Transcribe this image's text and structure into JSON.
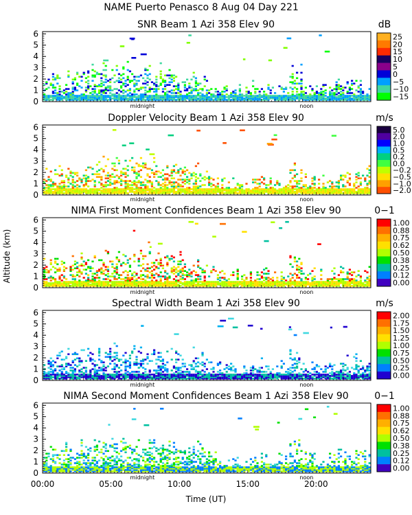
{
  "header": {
    "title": "NAME Puerto Penasco    8 Aug 04 Day 221"
  },
  "figure": {
    "ylabel": "Altitude (km)",
    "xlabel": "Time (UT)",
    "x_ticks": [
      "00:00",
      "05:00",
      "10:00",
      "15:00",
      "20:00"
    ],
    "y_ticks": [
      "0",
      "1",
      "2",
      "3",
      "4",
      "5",
      "6"
    ],
    "marker_midnight": "midnight",
    "marker_noon": "noon"
  },
  "chart_data": [
    {
      "type": "heatmap",
      "title": "SNR Beam 1 Azi 358 Elev 90",
      "unit": "dB",
      "xlim": [
        0,
        24
      ],
      "ylim": [
        0,
        6.2
      ],
      "colorbar": {
        "labels": [
          "25",
          "20",
          "15",
          "10",
          "5",
          "0",
          "−5",
          "−10",
          "−15"
        ],
        "colors": [
          "#ffb020",
          "#ff7a00",
          "#ff2a00",
          "#1a0060",
          "#8a008a",
          "#0000d8",
          "#00a0ff",
          "#40d8a0",
          "#00ff00"
        ]
      },
      "palette": [
        "#80ff00",
        "#00ff00",
        "#40d8a0",
        "#00a0ff",
        "#0000d8"
      ]
    },
    {
      "type": "heatmap",
      "title": "Doppler Velocity Beam 1 Azi 358 Elev 90",
      "unit": "m/s",
      "xlim": [
        0,
        24
      ],
      "ylim": [
        0,
        6.2
      ],
      "colorbar": {
        "labels": [
          "5.0",
          "2.0",
          "1.0",
          "0.5",
          "0.2",
          "0.0",
          "−0.2",
          "−0.5",
          "−1.0",
          "−2.0"
        ],
        "colors": [
          "#1a0040",
          "#5000a0",
          "#0000ff",
          "#00b0ff",
          "#00d080",
          "#40ff40",
          "#c0ff00",
          "#ffe000",
          "#ffa000",
          "#ff5000"
        ]
      },
      "palette": [
        "#ff5000",
        "#ffa000",
        "#ffe000",
        "#c0ff00",
        "#40ff40",
        "#00d080"
      ]
    },
    {
      "type": "heatmap",
      "title": "NIMA First Moment Confidences Beam 1 Azi 358 Elev 90",
      "unit": "0−1",
      "xlim": [
        0,
        24
      ],
      "ylim": [
        0,
        6.2
      ],
      "colorbar": {
        "labels": [
          "1.00",
          "0.88",
          "0.75",
          "0.62",
          "0.50",
          "0.38",
          "0.25",
          "0.12",
          "0.00"
        ],
        "colors": [
          "#ff0000",
          "#ff7000",
          "#ffb000",
          "#ffe000",
          "#b0ff00",
          "#00e000",
          "#00c0a0",
          "#0080ff",
          "#4000c0"
        ]
      },
      "palette": [
        "#ff0000",
        "#ff7000",
        "#ffe000",
        "#b0ff00",
        "#00e000",
        "#00c0a0"
      ]
    },
    {
      "type": "heatmap",
      "title": "Spectral Width Beam 1 Azi 358 Elev 90",
      "unit": "m/s",
      "xlim": [
        0,
        24
      ],
      "ylim": [
        0,
        6.2
      ],
      "colorbar": {
        "labels": [
          "2.00",
          "1.75",
          "1.50",
          "1.25",
          "1.00",
          "0.75",
          "0.50",
          "0.25",
          "0.00"
        ],
        "colors": [
          "#ff0000",
          "#ff7000",
          "#ffb000",
          "#ffe000",
          "#b0ff00",
          "#00e000",
          "#00c0a0",
          "#0080ff",
          "#2000d0"
        ]
      },
      "palette": [
        "#00b0f0",
        "#0080ff",
        "#2000d0",
        "#00c0a0",
        "#40d8e0"
      ]
    },
    {
      "type": "heatmap",
      "title": "NIMA Second Moment Confidences Beam 1 Azi 358 Elev 90",
      "unit": "0−1",
      "xlim": [
        0,
        24
      ],
      "ylim": [
        0,
        6.2
      ],
      "colorbar": {
        "labels": [
          "1.00",
          "0.88",
          "0.75",
          "0.62",
          "0.50",
          "0.38",
          "0.25",
          "0.12",
          "0.00"
        ],
        "colors": [
          "#ff0000",
          "#ff7000",
          "#ffb000",
          "#ffe000",
          "#b0ff00",
          "#00e000",
          "#00c0a0",
          "#0080ff",
          "#4000c0"
        ]
      },
      "palette": [
        "#00c0a0",
        "#00e000",
        "#0080ff",
        "#b0ff00",
        "#40d8e0"
      ]
    }
  ]
}
